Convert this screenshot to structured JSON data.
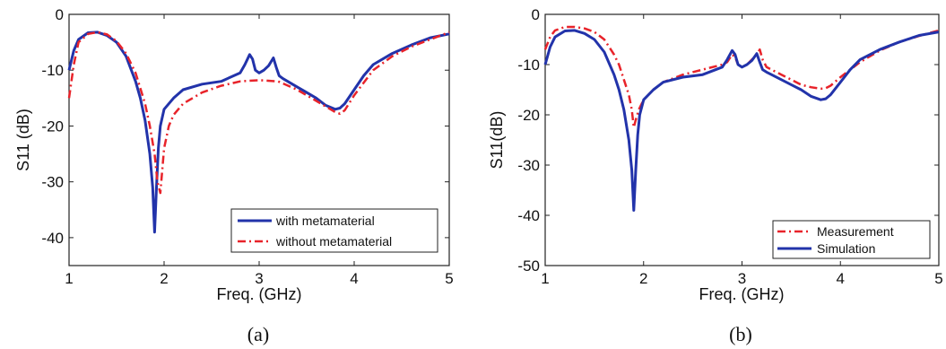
{
  "chart_data": [
    {
      "type": "line",
      "caption": "(a)",
      "xlabel": "Freq. (GHz)",
      "ylabel": "S11 (dB)",
      "xlim": [
        1,
        5
      ],
      "ylim": [
        -45,
        0
      ],
      "xticks": [
        1,
        2,
        3,
        4,
        5
      ],
      "yticks": [
        0,
        -10,
        -20,
        -30,
        -40
      ],
      "grid": false,
      "legend_position": "bottom-right",
      "series": [
        {
          "name": "with metamaterial",
          "color": "#2233aa",
          "style": "solid",
          "x": [
            1.0,
            1.05,
            1.1,
            1.2,
            1.3,
            1.4,
            1.5,
            1.6,
            1.7,
            1.75,
            1.8,
            1.85,
            1.88,
            1.9,
            1.92,
            1.94,
            1.96,
            2.0,
            2.1,
            2.2,
            2.4,
            2.6,
            2.8,
            2.85,
            2.9,
            2.93,
            2.96,
            3.0,
            3.05,
            3.1,
            3.15,
            3.18,
            3.21,
            3.25,
            3.3,
            3.4,
            3.5,
            3.6,
            3.7,
            3.8,
            3.85,
            3.9,
            4.0,
            4.1,
            4.2,
            4.4,
            4.6,
            4.8,
            5.0
          ],
          "y": [
            -10,
            -6.5,
            -4.5,
            -3.3,
            -3.2,
            -3.8,
            -5,
            -7.5,
            -12,
            -15,
            -19,
            -25,
            -31,
            -39,
            -31,
            -24,
            -20,
            -17,
            -15,
            -13.5,
            -12.5,
            -12,
            -10.5,
            -9,
            -7.2,
            -8,
            -10,
            -10.5,
            -10,
            -9.2,
            -7.8,
            -9.5,
            -11,
            -11.5,
            -12,
            -13,
            -14,
            -15,
            -16.3,
            -17,
            -16.8,
            -16,
            -13.5,
            -11,
            -9,
            -7,
            -5.5,
            -4.2,
            -3.5
          ]
        },
        {
          "name": "without metamaterial",
          "color": "#e8232a",
          "style": "dashdot",
          "x": [
            1.0,
            1.05,
            1.1,
            1.2,
            1.3,
            1.4,
            1.5,
            1.6,
            1.7,
            1.8,
            1.85,
            1.9,
            1.93,
            1.96,
            1.98,
            2.0,
            2.05,
            2.1,
            2.2,
            2.4,
            2.6,
            2.8,
            3.0,
            3.2,
            3.4,
            3.6,
            3.8,
            3.85,
            3.9,
            4.0,
            4.2,
            4.4,
            4.6,
            4.8,
            5.0
          ],
          "y": [
            -15,
            -9,
            -5,
            -3.5,
            -3.2,
            -3.6,
            -4.8,
            -7,
            -10.5,
            -16,
            -20,
            -25,
            -30,
            -32,
            -28,
            -24,
            -20,
            -18,
            -16,
            -14,
            -12.8,
            -12,
            -11.8,
            -12,
            -13.5,
            -15.5,
            -17.5,
            -17.8,
            -17.2,
            -14.5,
            -10,
            -7.5,
            -5.8,
            -4.5,
            -3.2
          ]
        }
      ]
    },
    {
      "type": "line",
      "caption": "(b)",
      "xlabel": "Freq. (GHz)",
      "ylabel": "S11(dB)",
      "xlim": [
        1,
        5
      ],
      "ylim": [
        -50,
        0
      ],
      "xticks": [
        1,
        2,
        3,
        4,
        5
      ],
      "yticks": [
        0,
        -10,
        -20,
        -30,
        -40,
        -50
      ],
      "grid": false,
      "legend_position": "bottom-right",
      "series": [
        {
          "name": "Measurement",
          "color": "#e8232a",
          "style": "dashdot",
          "x": [
            1.0,
            1.05,
            1.1,
            1.2,
            1.3,
            1.4,
            1.5,
            1.6,
            1.7,
            1.75,
            1.8,
            1.85,
            1.88,
            1.9,
            1.92,
            1.95,
            2.0,
            2.1,
            2.2,
            2.4,
            2.6,
            2.8,
            2.85,
            2.9,
            2.93,
            2.96,
            3.0,
            3.05,
            3.1,
            3.15,
            3.18,
            3.21,
            3.25,
            3.3,
            3.4,
            3.5,
            3.6,
            3.7,
            3.8,
            3.85,
            3.9,
            4.0,
            4.2,
            4.4,
            4.6,
            4.8,
            5.0
          ],
          "y": [
            -7,
            -4.5,
            -3.2,
            -2.5,
            -2.5,
            -2.8,
            -3.5,
            -5,
            -8,
            -10,
            -13,
            -16,
            -19,
            -22.5,
            -21,
            -19,
            -17,
            -15,
            -13.5,
            -12,
            -11,
            -10,
            -9.5,
            -8,
            -8.5,
            -10,
            -10.5,
            -10,
            -9,
            -8,
            -7,
            -9,
            -10.5,
            -11,
            -12,
            -13,
            -14,
            -14.5,
            -14.8,
            -14.7,
            -14.2,
            -12.5,
            -9.5,
            -7.2,
            -5.5,
            -4.3,
            -3.2
          ]
        },
        {
          "name": "Simulation",
          "color": "#2233aa",
          "style": "solid",
          "x": [
            1.0,
            1.05,
            1.1,
            1.2,
            1.3,
            1.4,
            1.5,
            1.6,
            1.7,
            1.75,
            1.8,
            1.85,
            1.88,
            1.9,
            1.92,
            1.94,
            1.96,
            2.0,
            2.1,
            2.2,
            2.4,
            2.6,
            2.8,
            2.85,
            2.9,
            2.93,
            2.96,
            3.0,
            3.05,
            3.1,
            3.15,
            3.18,
            3.21,
            3.25,
            3.3,
            3.4,
            3.5,
            3.6,
            3.7,
            3.8,
            3.85,
            3.9,
            4.0,
            4.1,
            4.2,
            4.4,
            4.6,
            4.8,
            5.0
          ],
          "y": [
            -10,
            -6.5,
            -4.5,
            -3.3,
            -3.2,
            -3.8,
            -5,
            -7.5,
            -12,
            -15,
            -19,
            -25,
            -31,
            -39,
            -31,
            -24,
            -20,
            -17,
            -15,
            -13.5,
            -12.5,
            -12,
            -10.5,
            -9,
            -7.2,
            -8,
            -10,
            -10.5,
            -10,
            -9.2,
            -7.8,
            -9.5,
            -11,
            -11.5,
            -12,
            -13,
            -14,
            -15,
            -16.3,
            -17,
            -16.8,
            -16,
            -13.5,
            -11,
            -9,
            -7,
            -5.5,
            -4.2,
            -3.5
          ]
        }
      ]
    }
  ]
}
